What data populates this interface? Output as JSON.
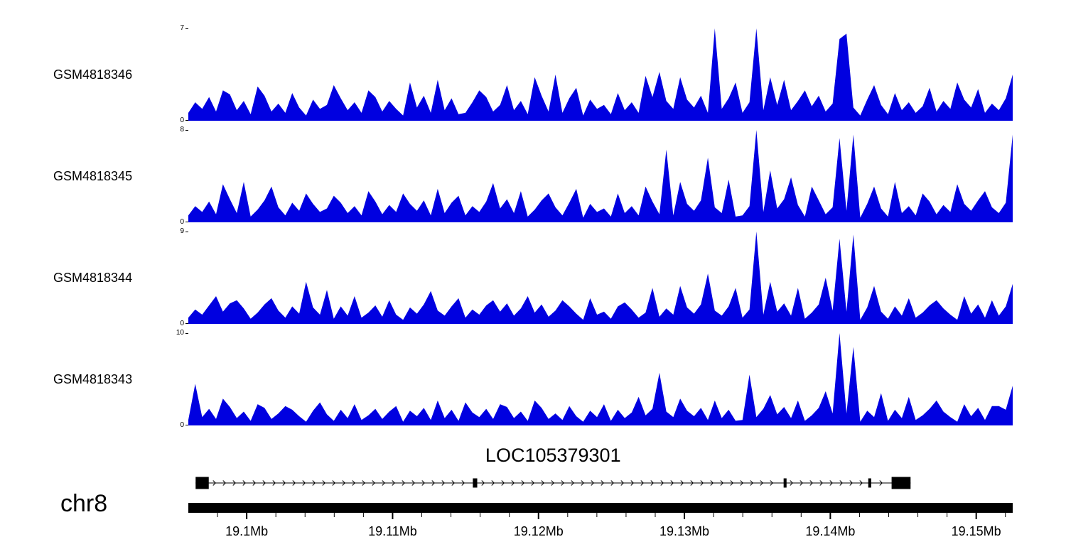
{
  "chart_data": {
    "type": "area",
    "title": "",
    "x_axis": {
      "chrom": "chr8",
      "start_mb": 19.096,
      "end_mb": 19.1525,
      "tick_values_mb": [
        19.1,
        19.11,
        19.12,
        19.13,
        19.14,
        19.15
      ],
      "tick_labels": [
        "19.1Mb",
        "19.11Mb",
        "19.12Mb",
        "19.13Mb",
        "19.14Mb",
        "19.15Mb"
      ],
      "minor_tick_step_mb": 0.002
    },
    "tracks": [
      {
        "name": "GSM4818346",
        "ylim": [
          0,
          7
        ],
        "color": "#0000e0",
        "values": [
          0.6,
          1.4,
          0.9,
          1.8,
          0.7,
          2.3,
          2.0,
          0.8,
          1.5,
          0.5,
          2.6,
          1.9,
          0.7,
          1.3,
          0.6,
          2.1,
          1.0,
          0.4,
          1.6,
          0.9,
          1.2,
          2.7,
          1.7,
          0.8,
          1.4,
          0.6,
          2.3,
          1.8,
          0.7,
          1.5,
          0.9,
          0.4,
          2.9,
          1.0,
          1.9,
          0.6,
          3.1,
          0.8,
          1.7,
          0.5,
          0.6,
          1.4,
          2.3,
          1.8,
          0.7,
          1.2,
          2.7,
          0.8,
          1.5,
          0.5,
          3.3,
          1.9,
          0.7,
          3.5,
          0.6,
          1.7,
          2.5,
          0.4,
          1.6,
          0.9,
          1.2,
          0.5,
          2.1,
          0.8,
          1.4,
          0.6,
          3.4,
          1.8,
          3.7,
          1.5,
          0.9,
          3.3,
          1.6,
          1.0,
          1.9,
          0.6,
          7.0,
          0.9,
          1.7,
          2.9,
          0.6,
          1.4,
          7.0,
          0.8,
          3.3,
          1.2,
          3.1,
          0.8,
          1.5,
          2.3,
          1.1,
          1.9,
          0.7,
          1.3,
          6.2,
          6.6,
          1.0,
          0.4,
          1.6,
          2.7,
          1.2,
          0.5,
          2.1,
          0.8,
          1.4,
          0.6,
          1.1,
          2.5,
          0.7,
          1.5,
          0.9,
          2.9,
          1.6,
          1.0,
          2.4,
          0.6,
          1.3,
          0.8,
          1.7,
          3.5
        ]
      },
      {
        "name": "GSM4818345",
        "ylim": [
          0,
          8
        ],
        "color": "#0000e0",
        "values": [
          0.6,
          1.4,
          0.9,
          1.8,
          0.7,
          3.3,
          2.0,
          0.8,
          3.5,
          0.5,
          1.1,
          1.9,
          3.1,
          1.3,
          0.6,
          1.7,
          1.0,
          2.5,
          1.6,
          0.9,
          1.2,
          2.3,
          1.7,
          0.8,
          1.4,
          0.6,
          2.7,
          1.8,
          0.7,
          1.5,
          0.9,
          2.5,
          1.6,
          1.0,
          1.9,
          0.6,
          2.9,
          0.8,
          1.7,
          2.3,
          0.6,
          1.4,
          0.9,
          1.8,
          3.4,
          1.2,
          2.0,
          0.8,
          2.7,
          0.5,
          1.1,
          1.9,
          2.5,
          1.3,
          0.6,
          1.7,
          2.9,
          0.4,
          1.6,
          0.9,
          1.2,
          0.5,
          2.5,
          0.8,
          1.4,
          0.6,
          3.1,
          1.8,
          0.7,
          6.3,
          0.6,
          3.5,
          1.6,
          1.0,
          1.9,
          5.6,
          1.3,
          0.8,
          3.7,
          0.5,
          0.6,
          1.4,
          8.0,
          0.9,
          4.5,
          1.2,
          2.0,
          3.9,
          1.5,
          0.5,
          3.1,
          1.9,
          0.7,
          1.3,
          7.3,
          1.0,
          7.6,
          0.4,
          1.6,
          3.1,
          1.2,
          0.5,
          3.5,
          0.8,
          1.4,
          0.6,
          2.5,
          1.8,
          0.7,
          1.5,
          0.9,
          3.3,
          1.6,
          1.0,
          1.9,
          2.7,
          1.3,
          0.8,
          1.7,
          7.6
        ]
      },
      {
        "name": "GSM4818344",
        "ylim": [
          0,
          9
        ],
        "color": "#0000e0",
        "values": [
          0.6,
          1.4,
          0.9,
          1.8,
          2.7,
          1.2,
          2.0,
          2.3,
          1.5,
          0.5,
          1.1,
          1.9,
          2.5,
          1.3,
          0.6,
          1.7,
          1.0,
          4.1,
          1.6,
          0.9,
          3.3,
          0.5,
          1.7,
          0.8,
          2.7,
          0.6,
          1.1,
          1.8,
          0.7,
          2.3,
          0.9,
          0.4,
          1.6,
          1.0,
          1.9,
          3.2,
          1.3,
          0.8,
          1.7,
          2.5,
          0.6,
          1.4,
          0.9,
          1.8,
          2.3,
          1.2,
          2.0,
          0.8,
          1.5,
          2.7,
          1.1,
          1.9,
          0.7,
          1.3,
          2.3,
          1.7,
          1.0,
          0.4,
          2.5,
          0.9,
          1.2,
          0.5,
          1.7,
          2.1,
          1.4,
          0.6,
          1.1,
          3.5,
          0.7,
          1.5,
          0.9,
          3.7,
          1.6,
          1.0,
          1.9,
          4.9,
          1.3,
          0.8,
          1.7,
          3.5,
          0.6,
          1.4,
          9.0,
          0.9,
          4.1,
          1.2,
          2.0,
          0.8,
          3.5,
          0.5,
          1.1,
          1.9,
          4.5,
          1.3,
          8.3,
          1.2,
          8.7,
          0.4,
          1.6,
          3.7,
          1.2,
          0.5,
          1.7,
          0.8,
          2.5,
          0.6,
          1.1,
          1.8,
          2.3,
          1.5,
          0.9,
          0.4,
          2.7,
          1.0,
          1.9,
          0.6,
          2.3,
          0.8,
          1.7,
          3.9
        ]
      },
      {
        "name": "GSM4818343",
        "ylim": [
          0,
          10
        ],
        "color": "#0000e0",
        "values": [
          0.6,
          4.5,
          0.9,
          1.8,
          0.7,
          2.9,
          2.0,
          0.8,
          1.5,
          0.5,
          2.3,
          1.9,
          0.7,
          1.3,
          2.1,
          1.7,
          1.0,
          0.4,
          1.6,
          2.5,
          1.2,
          0.5,
          1.7,
          0.8,
          2.3,
          0.6,
          1.1,
          1.8,
          0.7,
          1.5,
          2.1,
          0.4,
          1.6,
          1.0,
          1.9,
          0.6,
          2.7,
          0.8,
          1.7,
          0.5,
          2.5,
          1.4,
          0.9,
          1.8,
          0.7,
          2.3,
          2.0,
          0.8,
          1.5,
          0.5,
          2.7,
          1.9,
          0.7,
          1.3,
          0.6,
          2.1,
          1.0,
          0.4,
          1.6,
          0.9,
          2.3,
          0.5,
          1.7,
          0.8,
          1.4,
          3.1,
          1.1,
          1.8,
          5.7,
          1.5,
          0.9,
          2.9,
          1.6,
          1.0,
          1.9,
          0.6,
          2.7,
          0.8,
          1.7,
          0.5,
          0.6,
          5.5,
          0.9,
          1.8,
          3.3,
          1.2,
          2.0,
          0.8,
          2.7,
          0.5,
          1.1,
          1.9,
          3.7,
          1.3,
          10,
          1.3,
          8.5,
          0.4,
          1.6,
          0.9,
          3.5,
          0.5,
          1.7,
          0.8,
          3.1,
          0.6,
          1.1,
          1.8,
          2.7,
          1.5,
          0.9,
          0.4,
          2.3,
          1.0,
          1.9,
          0.6,
          2.1,
          2.1,
          1.7,
          4.3
        ]
      }
    ],
    "gene_track": {
      "chrom": "chr8",
      "gene": {
        "name": "LOC105379301",
        "strand": "+",
        "start_mb": 19.0965,
        "end_mb": 19.1455,
        "exons_mb": [
          [
            19.0965,
            19.0974
          ],
          [
            19.1155,
            19.1158
          ],
          [
            19.1368,
            19.137
          ],
          [
            19.1426,
            19.1428
          ],
          [
            19.1442,
            19.1455
          ]
        ]
      }
    }
  }
}
